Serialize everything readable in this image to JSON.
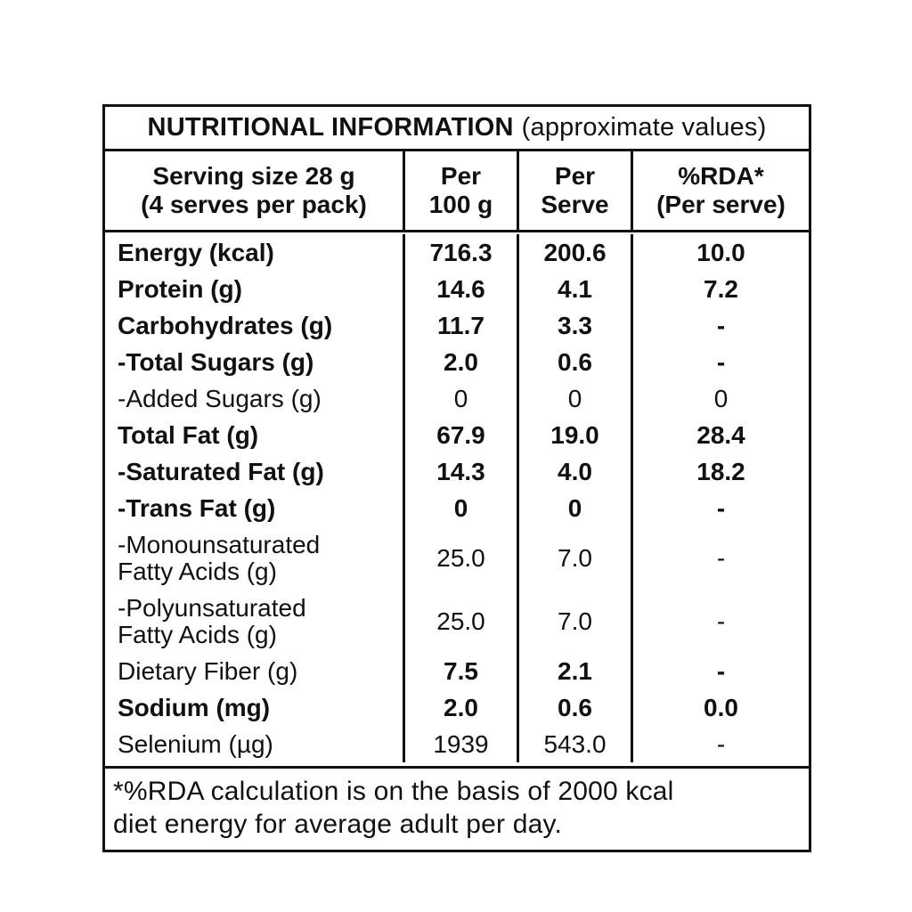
{
  "title": {
    "main": "NUTRITIONAL INFORMATION",
    "note": "(approximate values)"
  },
  "columns": [
    {
      "line1": "Serving size 28 g",
      "line2": "(4 serves per pack)"
    },
    {
      "line1": "Per",
      "line2": "100 g"
    },
    {
      "line1": "Per",
      "line2": "Serve"
    },
    {
      "line1": "%RDA*",
      "line2": "(Per serve)"
    }
  ],
  "rows": [
    {
      "label": "Energy (kcal)",
      "label2": "",
      "per_100g": "716.3",
      "per_serve": "200.6",
      "rda": "10.0",
      "bold_label": true,
      "bold_values": true,
      "tall": false
    },
    {
      "label": "Protein (g)",
      "label2": "",
      "per_100g": "14.6",
      "per_serve": "4.1",
      "rda": "7.2",
      "bold_label": true,
      "bold_values": true,
      "tall": false
    },
    {
      "label": "Carbohydrates (g)",
      "label2": "",
      "per_100g": "11.7",
      "per_serve": "3.3",
      "rda": "-",
      "bold_label": true,
      "bold_values": true,
      "tall": false
    },
    {
      "label": "-Total Sugars (g)",
      "label2": "",
      "per_100g": "2.0",
      "per_serve": "0.6",
      "rda": "-",
      "bold_label": true,
      "bold_values": true,
      "tall": false
    },
    {
      "label": "-Added Sugars (g)",
      "label2": "",
      "per_100g": "0",
      "per_serve": "0",
      "rda": "0",
      "bold_label": false,
      "bold_values": false,
      "tall": false
    },
    {
      "label": "Total Fat (g)",
      "label2": "",
      "per_100g": "67.9",
      "per_serve": "19.0",
      "rda": "28.4",
      "bold_label": true,
      "bold_values": true,
      "tall": false
    },
    {
      "label": "-Saturated Fat (g)",
      "label2": "",
      "per_100g": "14.3",
      "per_serve": "4.0",
      "rda": "18.2",
      "bold_label": true,
      "bold_values": true,
      "tall": false
    },
    {
      "label": "-Trans Fat (g)",
      "label2": "",
      "per_100g": "0",
      "per_serve": "0",
      "rda": "-",
      "bold_label": true,
      "bold_values": true,
      "tall": false
    },
    {
      "label": "-Monounsaturated",
      "label2": "Fatty Acids (g)",
      "per_100g": "25.0",
      "per_serve": "7.0",
      "rda": "-",
      "bold_label": false,
      "bold_values": false,
      "tall": true
    },
    {
      "label": "-Polyunsaturated",
      "label2": "Fatty Acids (g)",
      "per_100g": "25.0",
      "per_serve": "7.0",
      "rda": "-",
      "bold_label": false,
      "bold_values": false,
      "tall": true
    },
    {
      "label": "Dietary Fiber (g)",
      "label2": "",
      "per_100g": "7.5",
      "per_serve": "2.1",
      "rda": "-",
      "bold_label": false,
      "bold_values": true,
      "tall": false
    },
    {
      "label": "Sodium (mg)",
      "label2": "",
      "per_100g": "2.0",
      "per_serve": "0.6",
      "rda": "0.0",
      "bold_label": true,
      "bold_values": true,
      "tall": false
    },
    {
      "label": "Selenium (µg)",
      "label2": "",
      "per_100g": "1939",
      "per_serve": "543.0",
      "rda": "-",
      "bold_label": false,
      "bold_values": false,
      "tall": false
    }
  ],
  "footnote": {
    "line1": "*%RDA calculation is on the basis of 2000 kcal",
    "line2": "diet energy for average adult per day."
  }
}
